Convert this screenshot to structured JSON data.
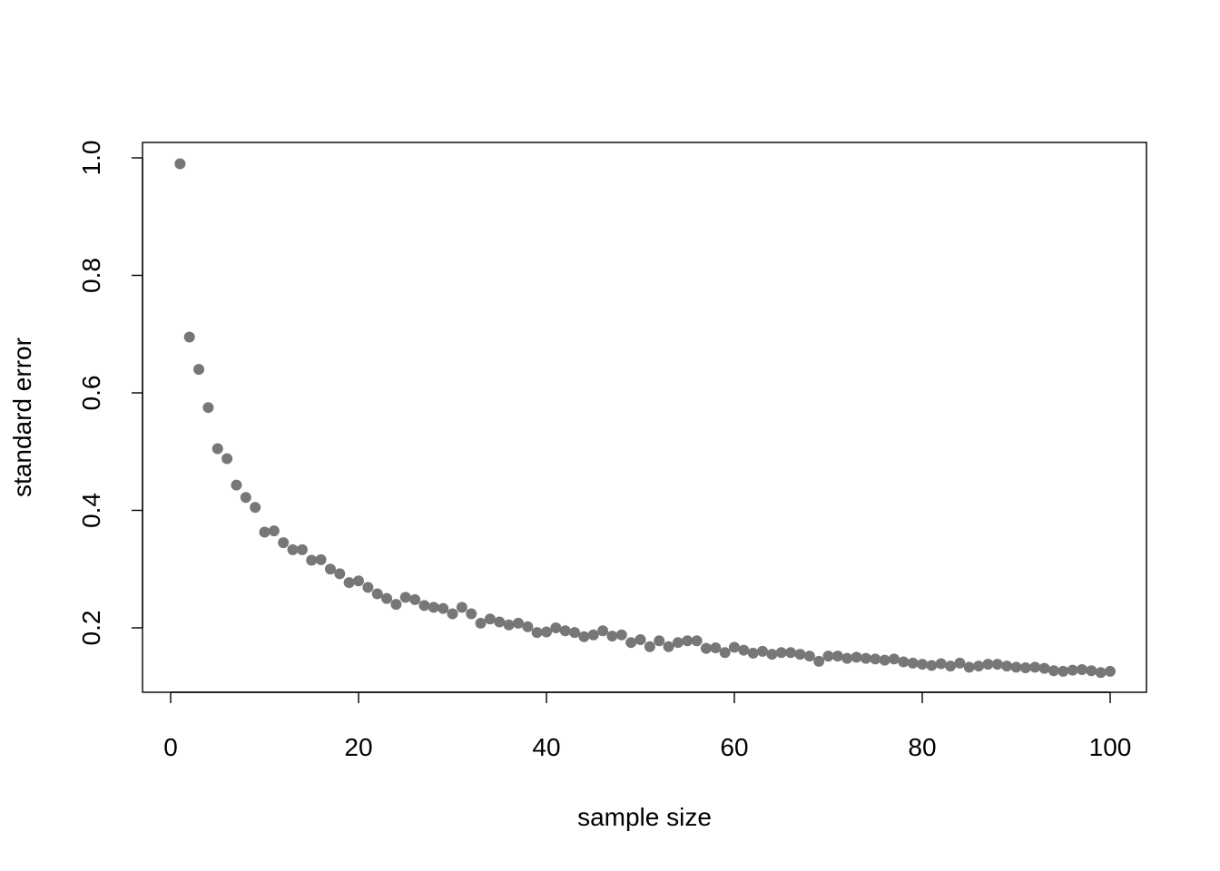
{
  "chart_data": {
    "type": "scatter",
    "title": "",
    "xlabel": "sample size",
    "ylabel": "standard error",
    "xlim": [
      -3.5,
      101.5
    ],
    "ylim": [
      0.1,
      1.0
    ],
    "x_ticks": [
      0,
      20,
      40,
      60,
      80,
      100
    ],
    "x_tick_labels": [
      "0",
      "20",
      "40",
      "60",
      "80",
      "100"
    ],
    "y_ticks": [
      0.2,
      0.4,
      0.6,
      0.8,
      1.0
    ],
    "y_tick_labels": [
      "0.2",
      "0.4",
      "0.6",
      "0.8",
      "1.0"
    ],
    "grid": false,
    "legend": "none",
    "point_color": "#777777",
    "series": [
      {
        "x": [
          1,
          2,
          3,
          4,
          5,
          6,
          7,
          8,
          9,
          10,
          11,
          12,
          13,
          14,
          15,
          16,
          17,
          18,
          19,
          20,
          21,
          22,
          23,
          24,
          25,
          26,
          27,
          28,
          29,
          30,
          31,
          32,
          33,
          34,
          35,
          36,
          37,
          38,
          39,
          40,
          41,
          42,
          43,
          44,
          45,
          46,
          47,
          48,
          49,
          50,
          51,
          52,
          53,
          54,
          55,
          56,
          57,
          58,
          59,
          60,
          61,
          62,
          63,
          64,
          65,
          66,
          67,
          68,
          69,
          70,
          71,
          72,
          73,
          74,
          75,
          76,
          77,
          78,
          79,
          80,
          81,
          82,
          83,
          84,
          85,
          86,
          87,
          88,
          89,
          90,
          91,
          92,
          93,
          94,
          95,
          96,
          97,
          98,
          99,
          100
        ],
        "y": [
          0.99,
          0.695,
          0.64,
          0.575,
          0.505,
          0.488,
          0.443,
          0.422,
          0.405,
          0.363,
          0.365,
          0.345,
          0.333,
          0.333,
          0.315,
          0.316,
          0.3,
          0.292,
          0.277,
          0.28,
          0.269,
          0.258,
          0.25,
          0.24,
          0.252,
          0.248,
          0.238,
          0.235,
          0.233,
          0.224,
          0.235,
          0.224,
          0.208,
          0.215,
          0.21,
          0.205,
          0.208,
          0.202,
          0.192,
          0.193,
          0.2,
          0.195,
          0.192,
          0.185,
          0.188,
          0.195,
          0.186,
          0.188,
          0.175,
          0.18,
          0.168,
          0.178,
          0.168,
          0.175,
          0.178,
          0.178,
          0.165,
          0.166,
          0.158,
          0.167,
          0.162,
          0.157,
          0.16,
          0.155,
          0.158,
          0.158,
          0.155,
          0.152,
          0.143,
          0.152,
          0.152,
          0.148,
          0.15,
          0.148,
          0.147,
          0.145,
          0.147,
          0.142,
          0.14,
          0.138,
          0.136,
          0.139,
          0.135,
          0.14,
          0.133,
          0.135,
          0.138,
          0.138,
          0.135,
          0.133,
          0.132,
          0.133,
          0.131,
          0.127,
          0.126,
          0.128,
          0.129,
          0.127,
          0.124,
          0.126
        ]
      }
    ]
  }
}
